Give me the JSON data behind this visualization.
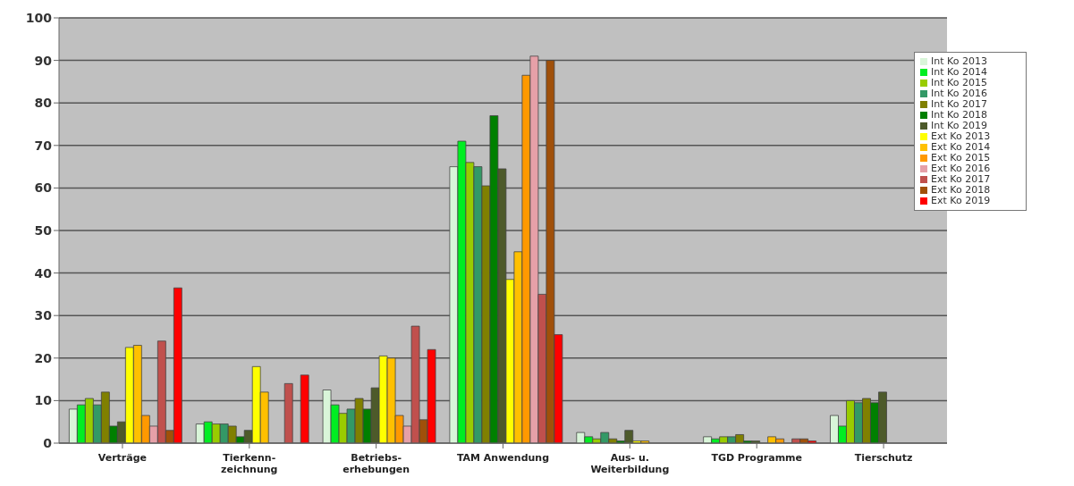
{
  "chart_data": {
    "type": "bar",
    "categories": [
      "Verträge",
      "Tierkenn-\nzeichnung",
      "Betriebs-\nerhebungen",
      "TAM Anwendung",
      "Aus- u.\nWeiterbildung",
      "TGD Programme",
      "Tierschutz"
    ],
    "series": [
      {
        "name": "Int Ko 2013",
        "color": "#d9f5d9",
        "values": [
          8,
          4.5,
          12.5,
          65,
          2.5,
          1.5,
          6.5
        ]
      },
      {
        "name": "Int Ko 2014",
        "color": "#00ee22",
        "values": [
          9,
          5,
          9,
          71,
          1.5,
          1,
          4
        ]
      },
      {
        "name": "Int Ko 2015",
        "color": "#99cc00",
        "values": [
          10.5,
          4.5,
          7,
          66,
          1,
          1.5,
          10
        ]
      },
      {
        "name": "Int Ko 2016",
        "color": "#339966",
        "values": [
          9,
          4.5,
          8,
          65,
          2.5,
          1.5,
          9.5
        ]
      },
      {
        "name": "Int Ko 2017",
        "color": "#808000",
        "values": [
          12,
          4,
          10.5,
          60.5,
          1,
          2,
          10.5
        ]
      },
      {
        "name": "Int Ko 2018",
        "color": "#008000",
        "values": [
          4,
          1.5,
          8,
          77,
          0.5,
          0.5,
          9.5
        ]
      },
      {
        "name": "Int Ko 2019",
        "color": "#4d5a2a",
        "values": [
          5,
          3,
          13,
          64.5,
          3,
          0.5,
          12
        ]
      },
      {
        "name": "Ext Ko 2013",
        "color": "#ffff00",
        "values": [
          22.5,
          18,
          20.5,
          38.5,
          0.5,
          null,
          null
        ]
      },
      {
        "name": "Ext Ko 2014",
        "color": "#ffc000",
        "values": [
          23,
          12,
          20,
          45,
          0.5,
          1.5,
          null
        ]
      },
      {
        "name": "Ext Ko 2015",
        "color": "#ff9900",
        "values": [
          6.5,
          null,
          6.5,
          86.5,
          null,
          1,
          null
        ]
      },
      {
        "name": "Ext Ko 2016",
        "color": "#e6a0a8",
        "values": [
          4,
          null,
          4,
          91,
          null,
          null,
          null
        ]
      },
      {
        "name": "Ext Ko 2017",
        "color": "#c0504d",
        "values": [
          24,
          14,
          27.5,
          35,
          null,
          1,
          null
        ]
      },
      {
        "name": "Ext Ko 2018",
        "color": "#a0500a",
        "values": [
          3,
          null,
          5.5,
          90,
          null,
          1,
          null
        ]
      },
      {
        "name": "Ext Ko 2019",
        "color": "#ff0000",
        "values": [
          36.5,
          16,
          22,
          25.5,
          null,
          0.5,
          null
        ]
      }
    ],
    "ylim": [
      0,
      100
    ],
    "yticks": [
      0,
      10,
      20,
      30,
      40,
      50,
      60,
      70,
      80,
      90,
      100
    ],
    "grid": "y",
    "legend": "top right"
  }
}
